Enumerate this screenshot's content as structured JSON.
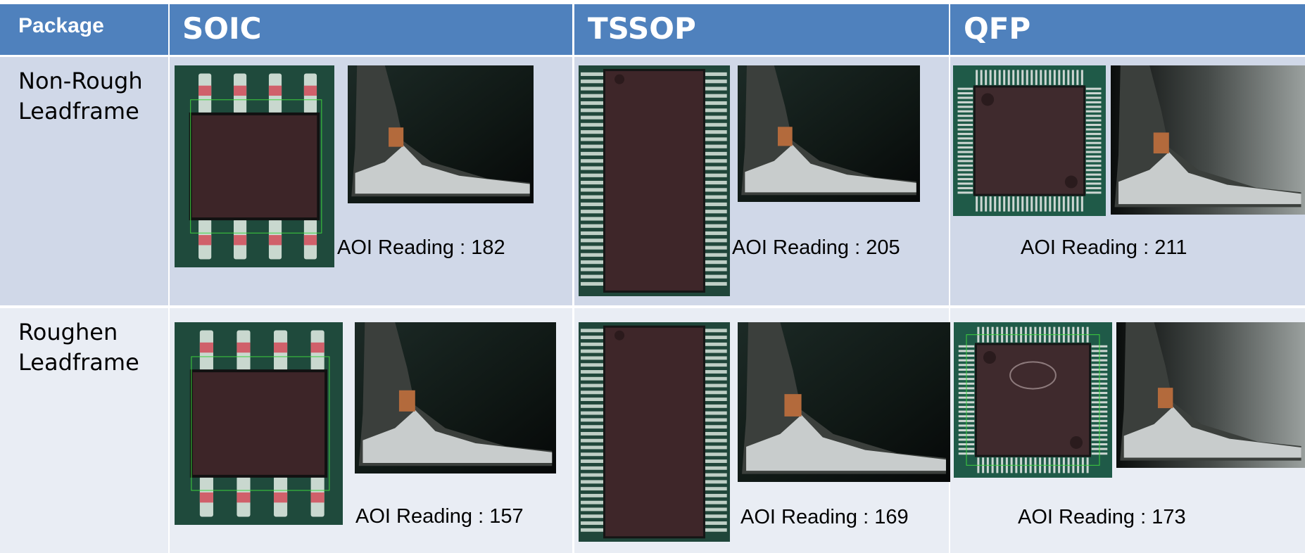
{
  "table": {
    "header": [
      "Package",
      "SOIC",
      "TSSOP",
      "QFP"
    ],
    "rows": [
      {
        "label": "Non-Rough Leadframe",
        "cells": [
          "AOI Reading : 182",
          "AOI Reading : 205",
          "AOI Reading : 211"
        ]
      },
      {
        "label": "Roughen Leadframe",
        "cells": [
          "AOI Reading : 157",
          "AOI Reading : 169",
          "AOI Reading : 173"
        ]
      }
    ]
  }
}
